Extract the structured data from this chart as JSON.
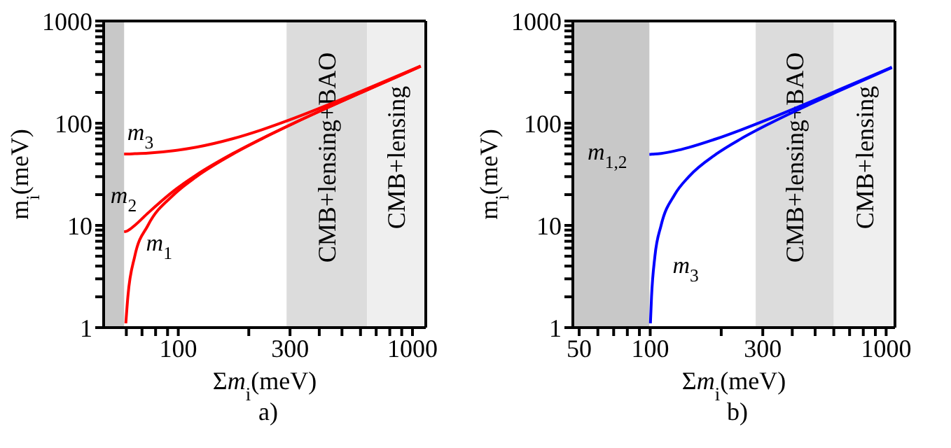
{
  "chart_data": [
    {
      "type": "line",
      "xlabel": "Σm$_{i}$(meV)",
      "ylabel": "m$_{i}$(meV)",
      "log": "xy",
      "marker": "none",
      "annotations": [
        "a)"
      ],
      "xlim": [
        48,
        1140
      ],
      "ylim": [
        1,
        1000
      ],
      "xticks": [
        {
          "value": 60,
          "label": null
        },
        {
          "value": 70,
          "label": null
        },
        {
          "value": 80,
          "label": null
        },
        {
          "value": 90,
          "label": null
        },
        100,
        {
          "value": 200,
          "label": null
        },
        300,
        {
          "value": 400,
          "label": null
        },
        {
          "value": 500,
          "label": null
        },
        {
          "value": 600,
          "label": null
        },
        {
          "value": 700,
          "label": null
        },
        {
          "value": 800,
          "label": null
        },
        {
          "value": 900,
          "label": null
        },
        1000
      ],
      "yticks": [
        1,
        {
          "value": 2,
          "label": null
        },
        {
          "value": 3,
          "label": null
        },
        {
          "value": 4,
          "label": null
        },
        {
          "value": 5,
          "label": null
        },
        {
          "value": 6,
          "label": null
        },
        {
          "value": 7,
          "label": null
        },
        {
          "value": 8,
          "label": null
        },
        {
          "value": 9,
          "label": null
        },
        10,
        {
          "value": 20,
          "label": null
        },
        {
          "value": 30,
          "label": null
        },
        {
          "value": 40,
          "label": null
        },
        {
          "value": 50,
          "label": null
        },
        {
          "value": 60,
          "label": null
        },
        {
          "value": 70,
          "label": null
        },
        {
          "value": 80,
          "label": null
        },
        {
          "value": 90,
          "label": null
        },
        100,
        {
          "value": 200,
          "label": null
        },
        {
          "value": 300,
          "label": null
        },
        {
          "value": 400,
          "label": null
        },
        {
          "value": 500,
          "label": null
        },
        {
          "value": 600,
          "label": null
        },
        {
          "value": 700,
          "label": null
        },
        {
          "value": 800,
          "label": null
        },
        {
          "value": 900,
          "label": null
        },
        1000
      ],
      "bands": [
        {
          "axis": "x",
          "from": 48,
          "to": 58.7,
          "color": "#c8c8c8"
        },
        {
          "axis": "x",
          "from": 290,
          "to": 640,
          "label": "CMB+lensing+BAO",
          "color": "#dcdcdc"
        },
        {
          "axis": "x",
          "from": 640,
          "to": 1140,
          "label": "CMB+lensing",
          "color": "#efefef"
        }
      ],
      "series": [
        {
          "name": "m$_{1}$",
          "color": "#ff0000",
          "x": [
            59.7,
            60.9,
            65.2,
            74.2,
            95.7,
            119.5,
            171.4,
            226.5,
            312,
            458,
            606,
            904,
            1084
          ],
          "values": [
            1.1,
            2,
            5,
            10,
            20,
            30,
            50,
            70,
            100,
            150,
            200,
            300,
            360
          ]
        },
        {
          "name": "m$_{2}$",
          "color": "#ff0000",
          "x": [
            58.7,
            59.7,
            60.9,
            65.2,
            74.2,
            95.7,
            119.5,
            171.4,
            226.5,
            312,
            458,
            606,
            904,
            1084
          ],
          "values": [
            8.66,
            8.72,
            8.89,
            10,
            13.2,
            21.8,
            31.2,
            50.7,
            70.5,
            100.4,
            150.2,
            200.2,
            300.1,
            360.1
          ]
        },
        {
          "name": "m$_{3}$",
          "color": "#ff0000",
          "x": [
            58.7,
            59.7,
            60.9,
            65.2,
            74.2,
            95.7,
            119.5,
            171.4,
            226.5,
            312,
            458,
            606,
            904,
            1084
          ],
          "values": [
            50,
            50,
            50,
            50.3,
            51,
            53.9,
            58.3,
            70.7,
            86,
            111.8,
            158.1,
            206.2,
            304.1,
            363.5
          ]
        }
      ]
    },
    {
      "type": "line",
      "xlabel": "Σm$_{i}$(meV)",
      "ylabel": "m$_{i}$(meV)",
      "log": "xy",
      "marker": "none",
      "annotations": [
        "b)"
      ],
      "xlim": [
        47,
        1090
      ],
      "ylim": [
        1,
        1000
      ],
      "xticks": [
        50,
        {
          "value": 60,
          "label": null
        },
        {
          "value": 70,
          "label": null
        },
        {
          "value": 80,
          "label": null
        },
        {
          "value": 90,
          "label": null
        },
        100,
        {
          "value": 200,
          "label": null
        },
        300,
        {
          "value": 400,
          "label": null
        },
        {
          "value": 500,
          "label": null
        },
        {
          "value": 600,
          "label": null
        },
        {
          "value": 700,
          "label": null
        },
        {
          "value": 800,
          "label": null
        },
        {
          "value": 900,
          "label": null
        },
        1000
      ],
      "yticks": [
        1,
        {
          "value": 2,
          "label": null
        },
        {
          "value": 3,
          "label": null
        },
        {
          "value": 4,
          "label": null
        },
        {
          "value": 5,
          "label": null
        },
        {
          "value": 6,
          "label": null
        },
        {
          "value": 7,
          "label": null
        },
        {
          "value": 8,
          "label": null
        },
        {
          "value": 9,
          "label": null
        },
        10,
        {
          "value": 20,
          "label": null
        },
        {
          "value": 30,
          "label": null
        },
        {
          "value": 40,
          "label": null
        },
        {
          "value": 50,
          "label": null
        },
        {
          "value": 60,
          "label": null
        },
        {
          "value": 70,
          "label": null
        },
        {
          "value": 80,
          "label": null
        },
        {
          "value": 90,
          "label": null
        },
        100,
        {
          "value": 200,
          "label": null
        },
        {
          "value": 300,
          "label": null
        },
        {
          "value": 400,
          "label": null
        },
        {
          "value": 500,
          "label": null
        },
        {
          "value": 600,
          "label": null
        },
        {
          "value": 700,
          "label": null
        },
        {
          "value": 800,
          "label": null
        },
        {
          "value": 900,
          "label": null
        },
        1000
      ],
      "bands": [
        {
          "axis": "x",
          "from": 47,
          "to": 99.2,
          "color": "#c8c8c8"
        },
        {
          "axis": "x",
          "from": 280,
          "to": 600,
          "label": "CMB+lensing+BAO",
          "color": "#dcdcdc"
        },
        {
          "axis": "x",
          "from": 600,
          "to": 1090,
          "label": "CMB+lensing",
          "color": "#efefef"
        }
      ],
      "series": [
        {
          "name": "m$_{1,2}$",
          "color": "#0000ff",
          "x": [
            99.2,
            100.2,
            101.3,
            104.7,
            111.2,
            127,
            145.8,
            190.8,
            241.4,
            323,
            465.8,
            612,
            908,
            1057
          ],
          "values": [
            49.6,
            49.6,
            49.7,
            49.9,
            50.6,
            53.5,
            57.9,
            70.4,
            85.7,
            111.5,
            157.9,
            206,
            304,
            353.5
          ]
        },
        {
          "name": "m$_{3}$",
          "color": "#0000ff",
          "x": [
            100.2,
            101.3,
            104.7,
            111.2,
            127,
            145.8,
            190.8,
            241.4,
            323,
            465.8,
            612,
            908,
            1057
          ],
          "values": [
            1.1,
            2,
            5,
            10,
            20,
            30,
            50,
            70,
            100,
            150,
            200,
            300,
            350
          ]
        }
      ]
    }
  ]
}
